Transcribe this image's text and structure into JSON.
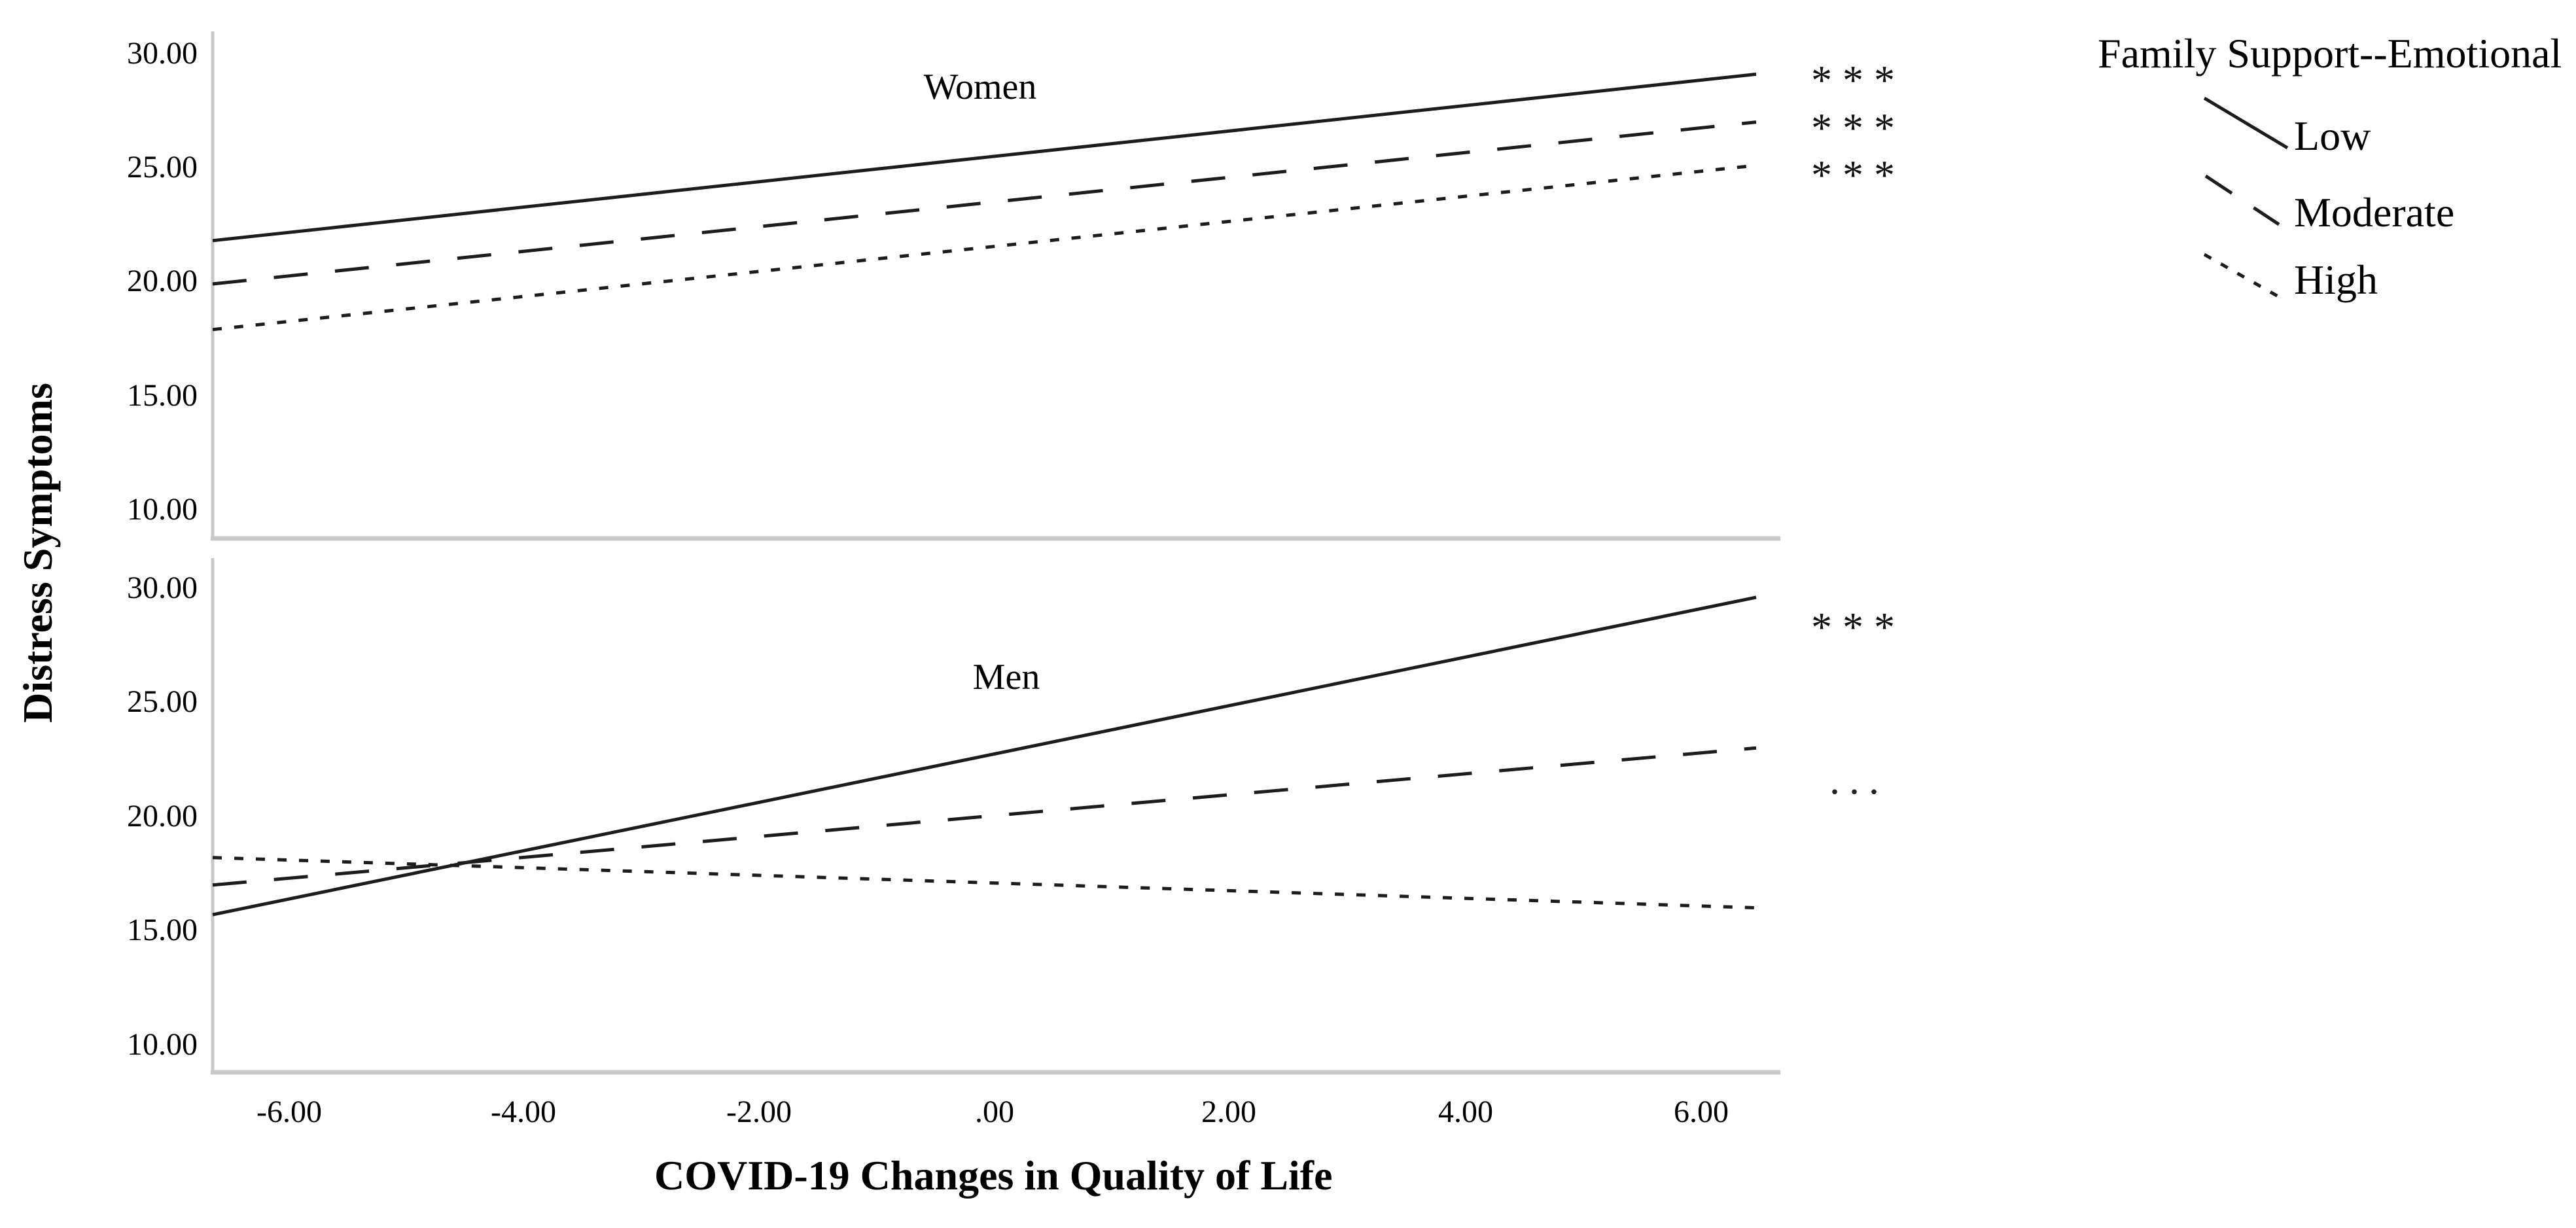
{
  "figure": {
    "y_axis_title": "Distress Symptoms",
    "x_axis_title": "COVID-19 Changes in Quality of Life"
  },
  "legend": {
    "title": "Family Support--Emotional",
    "items": [
      {
        "label": "Low",
        "style": "solid"
      },
      {
        "label": "Moderate",
        "style": "dashed"
      },
      {
        "label": "High",
        "style": "dotted"
      }
    ]
  },
  "axes": {
    "y_ticks": [
      "30.00",
      "25.00",
      "20.00",
      "15.00",
      "10.00"
    ],
    "x_ticks": [
      "-6.00",
      "-4.00",
      "-2.00",
      ".00",
      "2.00",
      "4.00",
      "6.00"
    ]
  },
  "colors": {
    "line": "#1c1c1c",
    "axis_gray": "#c8c8c8",
    "text": "#000000"
  },
  "chart_data": {
    "type": "line",
    "title": "",
    "xlabel": "COVID-19 Changes in Quality of Life",
    "ylabel": "Distress Symptoms",
    "x_range": [
      -6.6,
      6.5
    ],
    "y_tick_values": [
      10,
      15,
      20,
      25,
      30
    ],
    "x_tick_values": [
      -6,
      -4,
      -2,
      0,
      2,
      4,
      6
    ],
    "grid": false,
    "legend_position": "top-right",
    "legend_title": "Family Support--Emotional",
    "panels": [
      {
        "id": "women",
        "label": "Women",
        "ylim": [
          9,
          31
        ],
        "series": [
          {
            "name": "Low",
            "style": "solid",
            "x": [
              -6.6,
              6.5
            ],
            "y": [
              21.8,
              29.1
            ],
            "significance": "***"
          },
          {
            "name": "Moderate",
            "style": "dashed",
            "x": [
              -6.6,
              6.5
            ],
            "y": [
              19.9,
              27.0
            ],
            "significance": "***"
          },
          {
            "name": "High",
            "style": "dotted",
            "x": [
              -6.6,
              6.5
            ],
            "y": [
              17.9,
              25.1
            ],
            "significance": "***"
          }
        ]
      },
      {
        "id": "men",
        "label": "Men",
        "ylim": [
          9,
          31
        ],
        "series": [
          {
            "name": "Low",
            "style": "solid",
            "x": [
              -6.6,
              6.5
            ],
            "y": [
              15.7,
              29.6
            ],
            "significance": "***"
          },
          {
            "name": "Moderate",
            "style": "dashed",
            "x": [
              -6.6,
              6.5
            ],
            "y": [
              17.0,
              23.0
            ],
            "significance": "..."
          },
          {
            "name": "High",
            "style": "dotted",
            "x": [
              -6.6,
              6.5
            ],
            "y": [
              18.2,
              16.0
            ],
            "significance": ""
          }
        ]
      }
    ]
  }
}
